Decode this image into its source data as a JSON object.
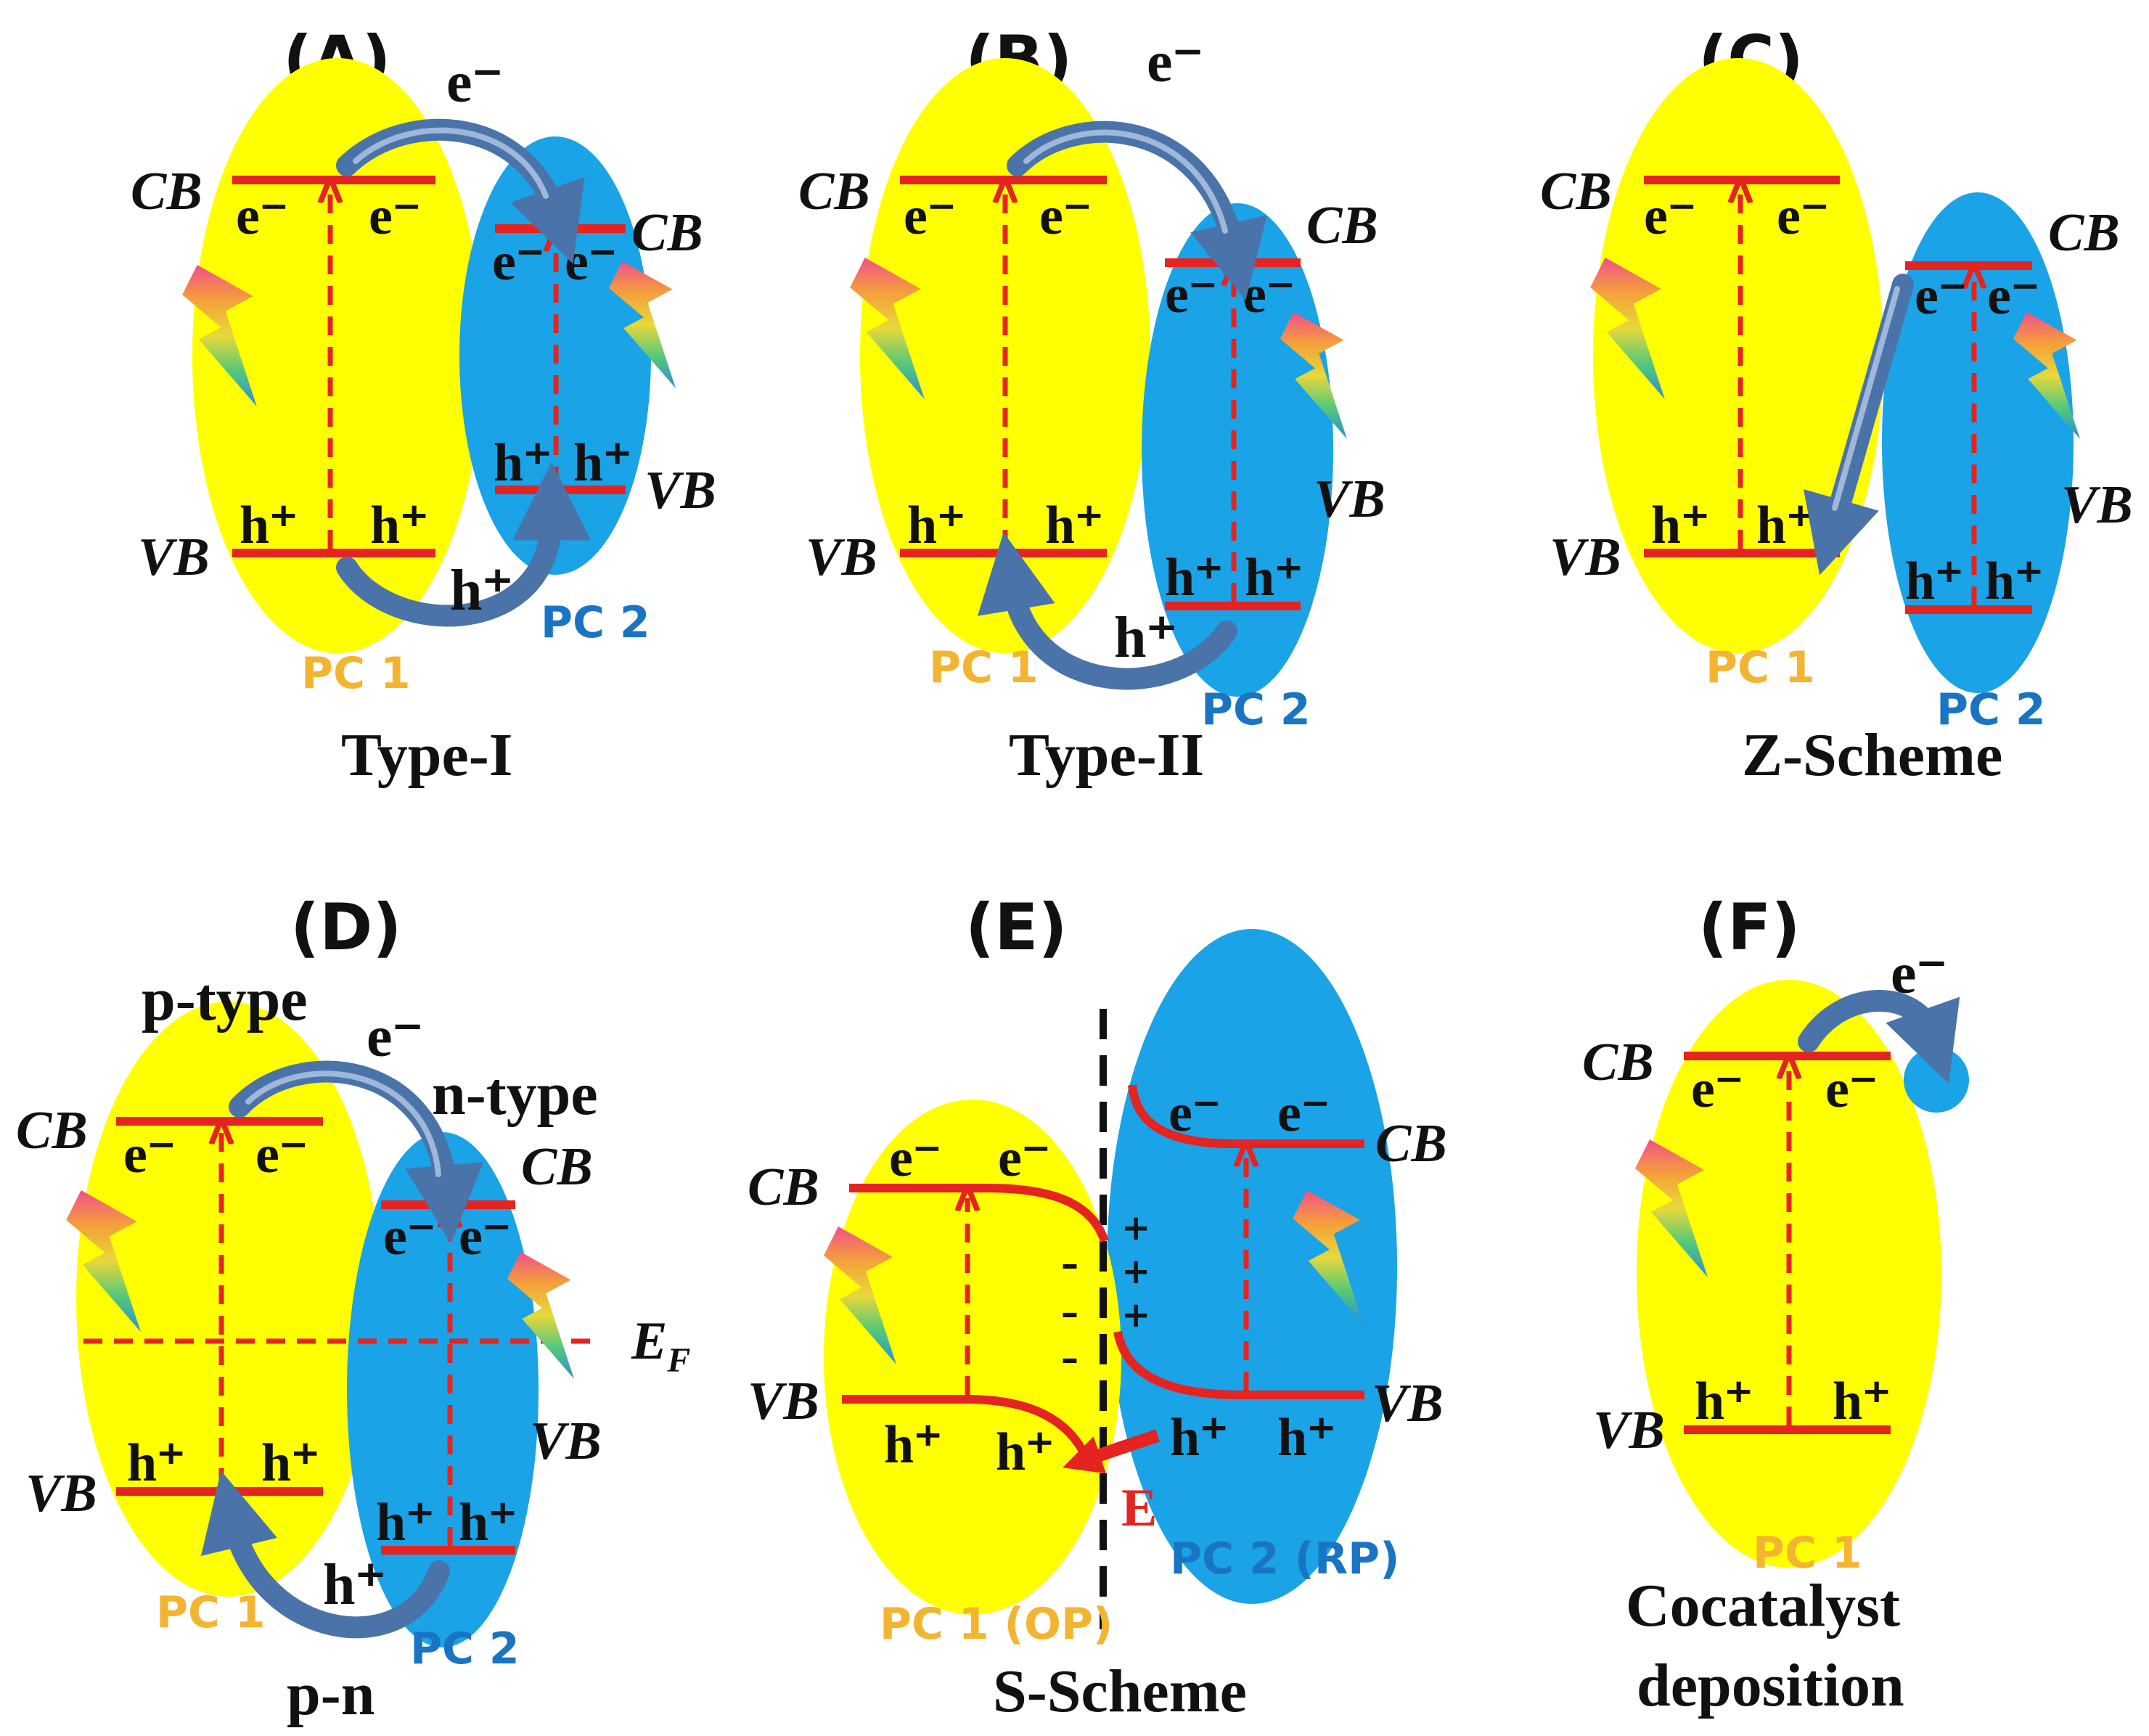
{
  "labels": {
    "electron": "e⁻",
    "hole": "h⁺",
    "cb": "CB",
    "vb": "VB",
    "pc1": "PC 1",
    "pc2": "PC 2",
    "pc1_op": "PC 1 (OP)",
    "pc2_rp": "PC 2 (RP)",
    "ef": "E",
    "ef_sub": "F",
    "field": "E",
    "minus": "–",
    "plus": "+"
  },
  "panels": [
    {
      "id": "A",
      "title": "(A)",
      "caption": "Type-I"
    },
    {
      "id": "B",
      "title": "(B)",
      "caption": "Type-II"
    },
    {
      "id": "C",
      "title": "(C)",
      "caption": "Z-Scheme"
    },
    {
      "id": "D",
      "title": "(D)",
      "caption": "p-n",
      "extra": [
        "p-type",
        "n-type"
      ]
    },
    {
      "id": "E",
      "title": "(E)",
      "caption": "S-Scheme"
    },
    {
      "id": "F",
      "title": "(F)",
      "caption_lines": [
        "Cocatalyst",
        "deposition"
      ]
    }
  ],
  "colors": {
    "pc1_fill": "#ffff00",
    "pc2_fill": "#1aa3e6",
    "band_line": "#e52320",
    "transfer_arrow": "#4a73aa",
    "pc1_text": "#f3b531",
    "pc2_text": "#1a74c4"
  }
}
